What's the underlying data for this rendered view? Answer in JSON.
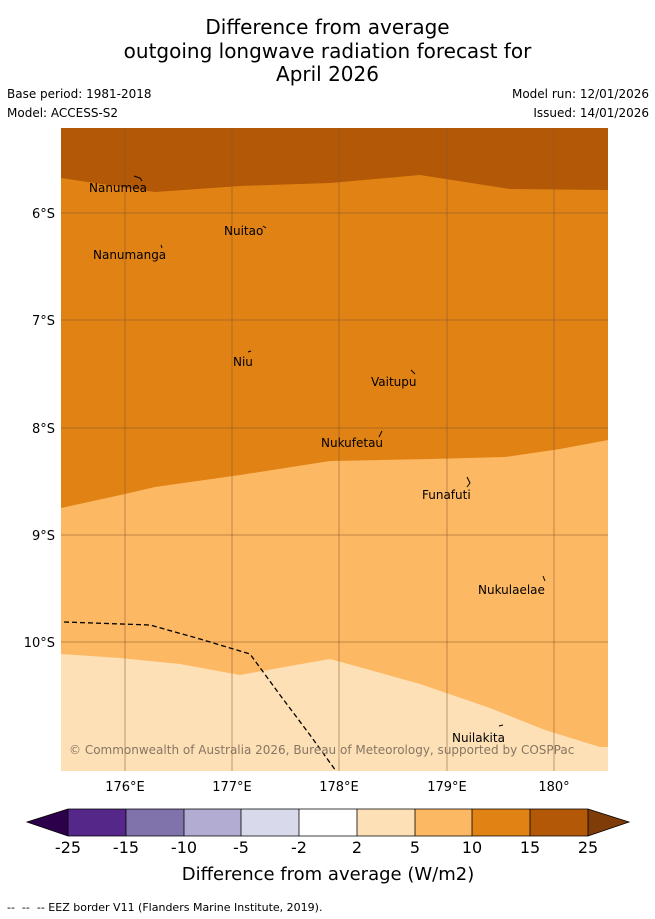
{
  "title": {
    "line1": "Difference from average",
    "line2": "outgoing longwave radiation forecast for",
    "line3": "April 2026"
  },
  "meta": {
    "base_period": "Base period: 1981-2018",
    "model": "Model: ACCESS-S2",
    "model_run": "Model run: 12/01/2026",
    "issued": "Issued: 14/01/2026"
  },
  "map": {
    "lat_labels": [
      "6°S",
      "7°S",
      "8°S",
      "9°S",
      "10°S"
    ],
    "lon_labels": [
      "176°E",
      "177°E",
      "178°E",
      "179°E",
      "180°"
    ],
    "places": [
      "Nanumea",
      "Nuitao",
      "Nanumanga",
      "Niu",
      "Vaitupu",
      "Nukufetau",
      "Funafuti",
      "Nukulaelae",
      "Nuilakita"
    ],
    "copyright": "© Commonwealth of Australia 2026, Bureau of Meteorology, supported by COSPPac",
    "colors": {
      "band_15_25": "#b35806",
      "band_10_15": "#e08214",
      "band_5_10": "#fdb863",
      "band_2_5": "#fee0b6"
    }
  },
  "colorbar": {
    "ticks": [
      "-25",
      "-15",
      "-10",
      "-5",
      "-2",
      "2",
      "5",
      "10",
      "15",
      "25"
    ],
    "colors": [
      "#2d004b",
      "#542788",
      "#8073ac",
      "#b2abd2",
      "#d8daeb",
      "#ffffff",
      "#fee0b6",
      "#fdb863",
      "#e08214",
      "#b35806",
      "#7f3b08"
    ],
    "label": "Difference from average (W/m2)"
  },
  "legend": {
    "eez": "--  --  -- EEZ border V11 (Flanders Marine Institute, 2019)."
  }
}
